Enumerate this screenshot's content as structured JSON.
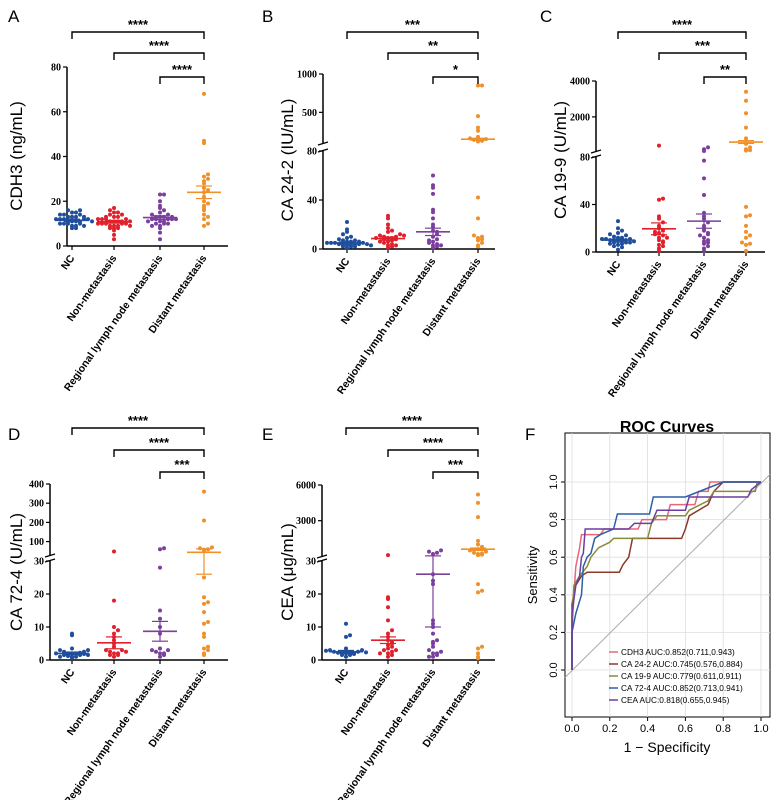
{
  "colors": {
    "NC": "#1f4e9c",
    "Non-metastasis": "#e0202a",
    "Regional lymph node metastasis": "#7b3f9e",
    "Distant metastasis": "#f0902a"
  },
  "chart_data": [
    {
      "panel": "A",
      "type": "scatter",
      "ylabel": "CDH3 (ng/mL)",
      "categories": [
        "NC",
        "Non-metastasis",
        "Regional lymph node metastasis",
        "Distant metastasis"
      ],
      "ticks": [
        [
          0,
          20,
          40,
          60,
          80
        ]
      ],
      "groups": [
        {
          "values": [
            8,
            9,
            9,
            10,
            10,
            10,
            11,
            11,
            11,
            11,
            12,
            12,
            12,
            12,
            13,
            13,
            13,
            14,
            14,
            15,
            15,
            16,
            16,
            9,
            10,
            12,
            11,
            13,
            8,
            14
          ],
          "mean": 11.5,
          "sem": 0.5
        },
        {
          "values": [
            3,
            5,
            7,
            8,
            8,
            9,
            9,
            9,
            10,
            10,
            10,
            10,
            11,
            11,
            11,
            11,
            12,
            12,
            12,
            13,
            13,
            14,
            14,
            15,
            15,
            16,
            17,
            9,
            10,
            11,
            12,
            13,
            8
          ],
          "mean": 10.8,
          "sem": 0.6
        },
        {
          "values": [
            3,
            6,
            8,
            9,
            10,
            10,
            11,
            11,
            12,
            12,
            12,
            12,
            13,
            13,
            13,
            14,
            14,
            15,
            16,
            17,
            18,
            20,
            23,
            23,
            11,
            12,
            13,
            10,
            9
          ],
          "mean": 12.7,
          "sem": 0.8
        },
        {
          "values": [
            9,
            10,
            12,
            14,
            16,
            18,
            20,
            22,
            24,
            26,
            28,
            29,
            30,
            31,
            32,
            46,
            47,
            68,
            13,
            17,
            19,
            25
          ],
          "mean": 24,
          "sem": 2.8
        }
      ],
      "comparisons": [
        {
          "from": 0,
          "to": 3,
          "sig": "****"
        },
        {
          "from": 1,
          "to": 3,
          "sig": "****"
        },
        {
          "from": 2,
          "to": 3,
          "sig": "****"
        }
      ]
    },
    {
      "panel": "B",
      "type": "scatter",
      "ylabel": "CA 24-2 (IU/mL)",
      "categories": [
        "NC",
        "Non-metastasis",
        "Regional lymph node metastasis",
        "Distant metastasis"
      ],
      "ticks": [
        [
          0,
          40,
          80
        ],
        [
          500,
          1000
        ]
      ],
      "groups": [
        {
          "values": [
            1,
            2,
            2,
            3,
            3,
            3,
            4,
            4,
            4,
            5,
            5,
            5,
            6,
            6,
            7,
            7,
            8,
            9,
            10,
            12,
            14,
            16,
            22,
            4,
            5,
            3,
            6,
            2
          ],
          "mean": 5,
          "sem": 0.8
        },
        {
          "values": [
            1,
            2,
            3,
            4,
            5,
            6,
            7,
            8,
            8,
            9,
            9,
            10,
            10,
            11,
            12,
            14,
            15,
            17,
            20,
            25,
            27,
            3,
            6,
            9,
            11
          ],
          "mean": 8.5,
          "sem": 1.3
        },
        {
          "values": [
            1,
            2,
            3,
            4,
            5,
            6,
            8,
            10,
            12,
            15,
            18,
            20,
            25,
            30,
            32,
            45,
            50,
            52,
            60,
            3,
            7,
            14
          ],
          "mean": 14,
          "sem": 3
        },
        {
          "values": [
            2,
            3,
            5,
            7,
            8,
            9,
            10,
            11,
            25,
            42,
            120,
            130,
            140,
            150,
            160,
            180,
            260,
            300,
            450,
            850,
            850
          ],
          "mean": 150,
          "sem": 12
        }
      ],
      "comparisons": [
        {
          "from": 0,
          "to": 3,
          "sig": "***"
        },
        {
          "from": 1,
          "to": 3,
          "sig": "**"
        },
        {
          "from": 2,
          "to": 3,
          "sig": "*"
        }
      ]
    },
    {
      "panel": "C",
      "type": "scatter",
      "ylabel": "CA 19-9 (U/mL)",
      "categories": [
        "NC",
        "Non-metastasis",
        "Regional lymph node metastasis",
        "Distant metastasis"
      ],
      "ticks": [
        [
          0,
          40,
          80
        ],
        [
          2000,
          4000
        ]
      ],
      "groups": [
        {
          "values": [
            2,
            4,
            5,
            6,
            7,
            8,
            8,
            9,
            9,
            10,
            10,
            10,
            11,
            11,
            12,
            12,
            13,
            14,
            15,
            16,
            18,
            20,
            26,
            9,
            7,
            8,
            11
          ],
          "mean": 10,
          "sem": 0.9
        },
        {
          "values": [
            1,
            3,
            5,
            6,
            8,
            10,
            12,
            14,
            15,
            16,
            18,
            20,
            22,
            25,
            28,
            30,
            44,
            45,
            400,
            12,
            9,
            17
          ],
          "mean": 19.5,
          "sem": 5
        },
        {
          "values": [
            1,
            3,
            5,
            7,
            8,
            9,
            10,
            12,
            15,
            18,
            20,
            22,
            25,
            28,
            30,
            33,
            48,
            62,
            77,
            82,
            200,
            300,
            14,
            16
          ],
          "mean": 26,
          "sem": 6
        },
        {
          "values": [
            1,
            6,
            7,
            8,
            12,
            14,
            17,
            22,
            30,
            31,
            38,
            120,
            150,
            200,
            300,
            500,
            800,
            1400,
            2200,
            2900,
            3400
          ],
          "mean": 600,
          "sem": 80
        }
      ],
      "comparisons": [
        {
          "from": 0,
          "to": 3,
          "sig": "****"
        },
        {
          "from": 1,
          "to": 3,
          "sig": "***"
        },
        {
          "from": 2,
          "to": 3,
          "sig": "**"
        }
      ]
    },
    {
      "panel": "D",
      "type": "scatter",
      "ylabel": "CA 72-4 (U/mL)",
      "categories": [
        "NC",
        "Non-metastasis",
        "Regional lymph node metastasis",
        "Distant metastasis"
      ],
      "ticks": [
        [
          0,
          10,
          20,
          30
        ],
        [
          100,
          200,
          300,
          400
        ]
      ],
      "groups": [
        {
          "values": [
            0.5,
            1,
            1,
            1.2,
            1.5,
            1.5,
            1.8,
            2,
            2,
            2,
            2.2,
            2.5,
            2.5,
            3,
            3,
            3.5,
            7.5,
            8,
            1,
            1.5,
            2
          ],
          "mean": 2,
          "sem": 0.4
        },
        {
          "values": [
            1,
            1.5,
            2,
            2,
            2.5,
            3,
            3,
            4,
            5,
            6,
            7,
            8,
            9,
            10,
            18,
            48,
            1.5,
            2.5
          ],
          "mean": 5.2,
          "sem": 1.8
        },
        {
          "values": [
            1,
            1.5,
            2,
            2,
            2.5,
            3,
            3,
            3.5,
            8,
            10,
            12.5,
            15,
            28,
            60,
            65
          ],
          "mean": 8.7,
          "sem": 3
        },
        {
          "values": [
            1.5,
            2,
            3,
            3.5,
            4,
            7,
            8,
            11,
            11.5,
            14.5,
            17,
            17.5,
            19,
            25,
            50,
            58,
            60,
            65,
            70,
            210,
            360
          ],
          "mean": 44,
          "sem": 18
        }
      ],
      "comparisons": [
        {
          "from": 0,
          "to": 3,
          "sig": "****"
        },
        {
          "from": 1,
          "to": 3,
          "sig": "****"
        },
        {
          "from": 2,
          "to": 3,
          "sig": "***"
        }
      ]
    },
    {
      "panel": "E",
      "type": "scatter",
      "ylabel": "CEA (μg/mL)",
      "categories": [
        "NC",
        "Non-metastasis",
        "Regional lymph node metastasis",
        "Distant metastasis"
      ],
      "ticks": [
        [
          0,
          10,
          20,
          30
        ],
        [
          3000,
          6000
        ]
      ],
      "groups": [
        {
          "values": [
            1,
            1.5,
            1.5,
            2,
            2,
            2,
            2,
            2.2,
            2.5,
            2.5,
            3,
            3,
            3.5,
            7,
            7.5,
            11,
            1.8,
            2.3,
            2.8
          ],
          "mean": 2.5,
          "sem": 0.4
        },
        {
          "values": [
            1,
            1.5,
            2,
            2.5,
            3,
            3,
            3.5,
            4,
            4.5,
            5,
            6,
            7,
            8,
            9,
            12,
            16,
            18.5,
            19,
            100,
            2,
            5.5
          ],
          "mean": 6,
          "sem": 1
        },
        {
          "values": [
            1,
            1.5,
            2,
            2,
            3,
            4,
            5,
            5.5,
            6,
            8,
            10,
            11,
            12,
            23,
            24,
            26,
            200,
            300,
            400,
            500,
            1,
            2.5
          ],
          "mean": 26,
          "sem": 16
        },
        {
          "values": [
            0.5,
            1,
            2,
            3.5,
            4,
            20.5,
            21,
            23,
            100,
            150,
            200,
            250,
            300,
            400,
            500,
            600,
            800,
            1000,
            1300,
            3300,
            4500,
            5200
          ],
          "mean": 600,
          "sem": 100
        }
      ],
      "comparisons": [
        {
          "from": 0,
          "to": 3,
          "sig": "****"
        },
        {
          "from": 1,
          "to": 3,
          "sig": "****"
        },
        {
          "from": 2,
          "to": 3,
          "sig": "***"
        }
      ]
    },
    {
      "panel": "F",
      "type": "line",
      "title": "ROC Curves",
      "xlabel": "1 − Specificity",
      "ylabel": "Sensitivity",
      "xlim": [
        0,
        1
      ],
      "ylim": [
        0,
        1
      ],
      "ticks": [
        0.0,
        0.2,
        0.4,
        0.6,
        0.8,
        1.0
      ],
      "grid": true,
      "legend_position": "bottom-right",
      "series": [
        {
          "name": "CDH3 AUC:0.852(0.711,0.943)",
          "color": "#e8677a",
          "points": [
            [
              0,
              0
            ],
            [
              0,
              0.2
            ],
            [
              0.01,
              0.4
            ],
            [
              0.02,
              0.55
            ],
            [
              0.03,
              0.6
            ],
            [
              0.04,
              0.65
            ],
            [
              0.05,
              0.72
            ],
            [
              0.15,
              0.72
            ],
            [
              0.17,
              0.75
            ],
            [
              0.35,
              0.75
            ],
            [
              0.37,
              0.8
            ],
            [
              0.5,
              0.8
            ],
            [
              0.52,
              0.88
            ],
            [
              0.65,
              0.88
            ],
            [
              0.67,
              0.95
            ],
            [
              0.72,
              0.95
            ],
            [
              0.73,
              1
            ],
            [
              1,
              1
            ]
          ]
        },
        {
          "name": "CA 24-2 AUC:0.745(0.576,0.884)",
          "color": "#8b3a2a",
          "points": [
            [
              0,
              0
            ],
            [
              0,
              0.35
            ],
            [
              0.02,
              0.45
            ],
            [
              0.05,
              0.5
            ],
            [
              0.08,
              0.52
            ],
            [
              0.25,
              0.52
            ],
            [
              0.27,
              0.56
            ],
            [
              0.3,
              0.6
            ],
            [
              0.32,
              0.7
            ],
            [
              0.58,
              0.7
            ],
            [
              0.6,
              0.75
            ],
            [
              0.62,
              0.82
            ],
            [
              0.72,
              0.88
            ],
            [
              0.75,
              0.95
            ],
            [
              0.8,
              1
            ],
            [
              1,
              1
            ]
          ]
        },
        {
          "name": "CA 19-9 AUC:0.779(0.611,0.911)",
          "color": "#8a8a3a",
          "points": [
            [
              0,
              0
            ],
            [
              0,
              0.25
            ],
            [
              0.01,
              0.45
            ],
            [
              0.04,
              0.5
            ],
            [
              0.08,
              0.55
            ],
            [
              0.1,
              0.6
            ],
            [
              0.14,
              0.65
            ],
            [
              0.2,
              0.68
            ],
            [
              0.22,
              0.7
            ],
            [
              0.4,
              0.7
            ],
            [
              0.42,
              0.78
            ],
            [
              0.45,
              0.82
            ],
            [
              0.6,
              0.82
            ],
            [
              0.62,
              0.85
            ],
            [
              0.72,
              0.9
            ],
            [
              0.75,
              0.95
            ],
            [
              0.97,
              0.95
            ],
            [
              0.98,
              1
            ],
            [
              1,
              1
            ]
          ]
        },
        {
          "name": "CA 72-4 AUC:0.852(0.713,0.941)",
          "color": "#2c5fa8",
          "points": [
            [
              0,
              0
            ],
            [
              0,
              0.2
            ],
            [
              0.02,
              0.3
            ],
            [
              0.05,
              0.4
            ],
            [
              0.06,
              0.55
            ],
            [
              0.08,
              0.6
            ],
            [
              0.1,
              0.62
            ],
            [
              0.12,
              0.7
            ],
            [
              0.15,
              0.72
            ],
            [
              0.22,
              0.75
            ],
            [
              0.24,
              0.83
            ],
            [
              0.41,
              0.83
            ],
            [
              0.43,
              0.92
            ],
            [
              0.6,
              0.92
            ],
            [
              0.7,
              0.96
            ],
            [
              0.8,
              1
            ],
            [
              1,
              1
            ]
          ]
        },
        {
          "name": "CEA AUC:0.818(0.655,0.945)",
          "color": "#6a3fa0",
          "points": [
            [
              0,
              0
            ],
            [
              0,
              0.3
            ],
            [
              0.02,
              0.45
            ],
            [
              0.04,
              0.5
            ],
            [
              0.05,
              0.6
            ],
            [
              0.06,
              0.62
            ],
            [
              0.07,
              0.75
            ],
            [
              0.3,
              0.75
            ],
            [
              0.33,
              0.78
            ],
            [
              0.42,
              0.78
            ],
            [
              0.45,
              0.85
            ],
            [
              0.6,
              0.85
            ],
            [
              0.62,
              0.92
            ],
            [
              0.93,
              0.92
            ],
            [
              0.95,
              0.96
            ],
            [
              1,
              1
            ]
          ]
        }
      ]
    }
  ]
}
